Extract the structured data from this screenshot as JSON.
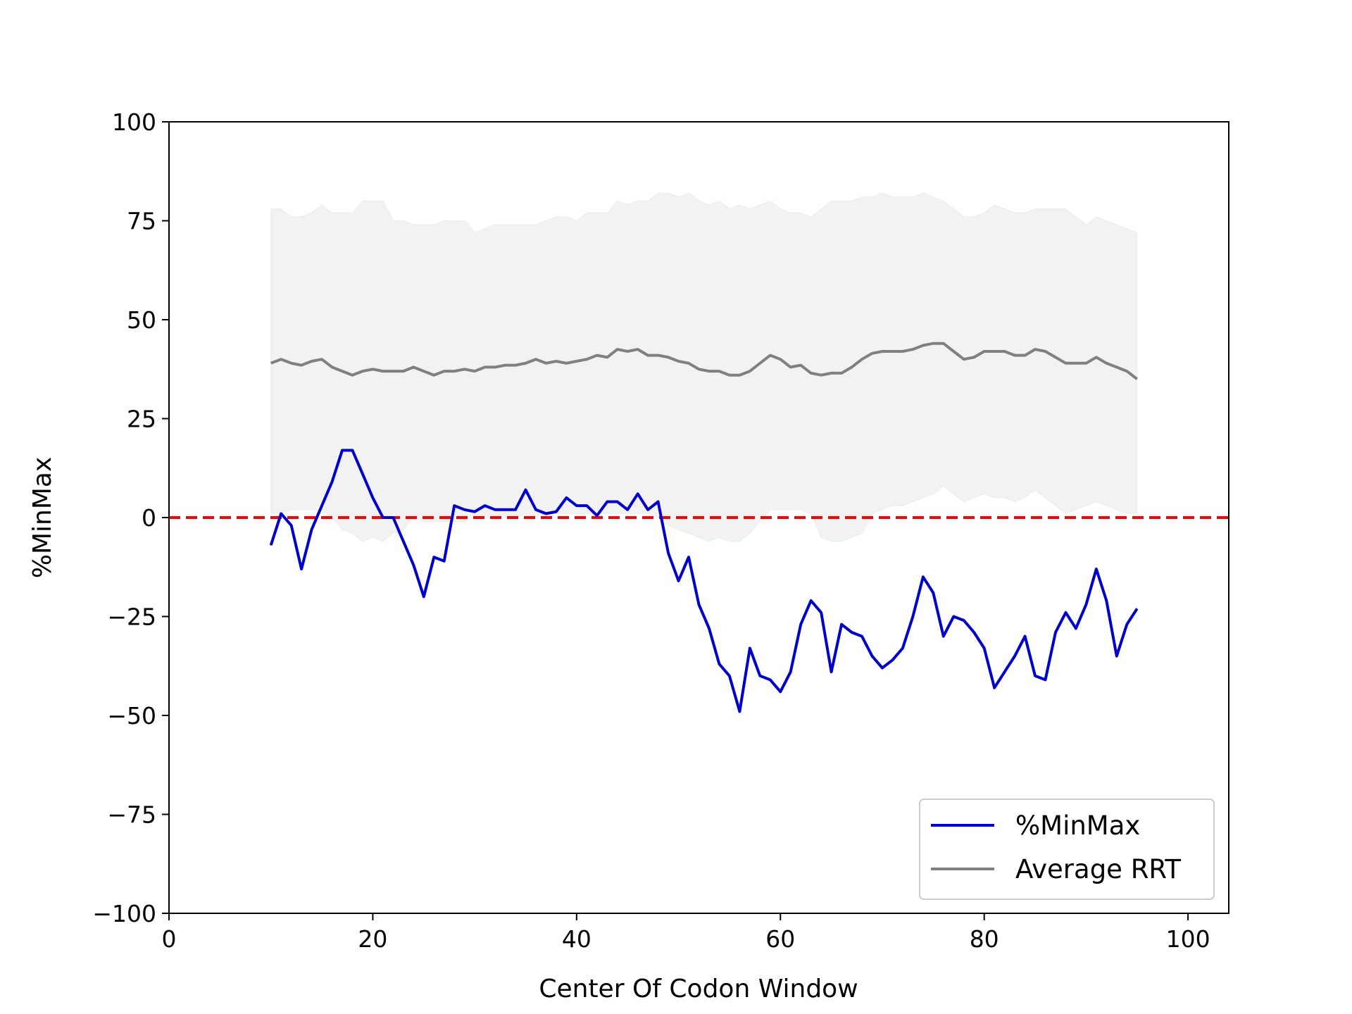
{
  "chart_data": {
    "type": "line",
    "xlabel": "Center Of Codon Window",
    "ylabel": "%MinMax",
    "xlim": [
      0,
      104
    ],
    "ylim": [
      -100,
      100
    ],
    "xticks": [
      0,
      20,
      40,
      60,
      80,
      100
    ],
    "yticks": [
      100,
      75,
      50,
      25,
      0,
      -25,
      -50,
      -75,
      -100
    ],
    "ytick_labels": [
      "100",
      "75",
      "50",
      "25",
      "0",
      "−25",
      "−50",
      "−75",
      "−100"
    ],
    "legend_position": "lower-right",
    "grid": false,
    "reference_line": {
      "y": 0,
      "style": "dashed",
      "color": "#ff0000"
    },
    "series": [
      {
        "name": "%MinMax",
        "color": "#0000cc",
        "x": [
          10,
          11,
          12,
          13,
          14,
          15,
          16,
          17,
          18,
          19,
          20,
          21,
          22,
          23,
          24,
          25,
          26,
          27,
          28,
          29,
          30,
          31,
          32,
          33,
          34,
          35,
          36,
          37,
          38,
          39,
          40,
          41,
          42,
          43,
          44,
          45,
          46,
          47,
          48,
          49,
          50,
          51,
          52,
          53,
          54,
          55,
          56,
          57,
          58,
          59,
          60,
          61,
          62,
          63,
          64,
          65,
          66,
          67,
          68,
          69,
          70,
          71,
          72,
          73,
          74,
          75,
          76,
          77,
          78,
          79,
          80,
          81,
          82,
          83,
          84,
          85,
          86,
          87,
          88,
          89,
          90,
          91,
          92,
          93,
          94,
          95
        ],
        "values": [
          -7,
          1,
          -2,
          -13,
          -3,
          3,
          9,
          17,
          17,
          11,
          5,
          0,
          0,
          -6,
          -12,
          -20,
          -10,
          -11,
          3,
          2,
          1.5,
          3,
          2,
          2,
          2,
          7,
          2,
          1,
          1.5,
          5,
          3,
          3,
          0.5,
          4,
          4,
          2,
          6,
          2,
          4,
          -9,
          -16,
          -10,
          -22,
          -28,
          -37,
          -40,
          -49,
          -33,
          -40,
          -41,
          -44,
          -39,
          -27,
          -21,
          -24,
          -39,
          -27,
          -29,
          -30,
          -35,
          -38,
          -36,
          -33,
          -25,
          -15,
          -19,
          -30,
          -25,
          -26,
          -29,
          -33,
          -43,
          -39,
          -35,
          -30,
          -40,
          -41,
          -29,
          -24,
          -28,
          -22,
          -13,
          -21,
          -35,
          -27,
          -23
        ]
      },
      {
        "name": "Average RRT",
        "color": "#808080",
        "x": [
          10,
          11,
          12,
          13,
          14,
          15,
          16,
          17,
          18,
          19,
          20,
          21,
          22,
          23,
          24,
          25,
          26,
          27,
          28,
          29,
          30,
          31,
          32,
          33,
          34,
          35,
          36,
          37,
          38,
          39,
          40,
          41,
          42,
          43,
          44,
          45,
          46,
          47,
          48,
          49,
          50,
          51,
          52,
          53,
          54,
          55,
          56,
          57,
          58,
          59,
          60,
          61,
          62,
          63,
          64,
          65,
          66,
          67,
          68,
          69,
          70,
          71,
          72,
          73,
          74,
          75,
          76,
          77,
          78,
          79,
          80,
          81,
          82,
          83,
          84,
          85,
          86,
          87,
          88,
          89,
          90,
          91,
          92,
          93,
          94,
          95
        ],
        "values": [
          39,
          40,
          39,
          38.5,
          39.5,
          40,
          38,
          37,
          36,
          37,
          37.5,
          37,
          37,
          37,
          38,
          37,
          36,
          37,
          37,
          37.5,
          37,
          38,
          38,
          38.5,
          38.5,
          39,
          40,
          39,
          39.5,
          39,
          39.5,
          40,
          41,
          40.5,
          42.5,
          42,
          42.5,
          41,
          41,
          40.5,
          39.5,
          39,
          37.5,
          37,
          37,
          36,
          36,
          37,
          39,
          41,
          40,
          38,
          38.5,
          36.5,
          36,
          36.5,
          36.5,
          38,
          40,
          41.5,
          42,
          42,
          42,
          42.5,
          43.5,
          44,
          44,
          42,
          40,
          40.5,
          42,
          42,
          42,
          41,
          41,
          42.5,
          42,
          40.5,
          39,
          39,
          39,
          40.5,
          39,
          38,
          37,
          35
        ]
      }
    ],
    "band": {
      "color": "#f2f2f2",
      "x": [
        10,
        11,
        12,
        13,
        14,
        15,
        16,
        17,
        18,
        19,
        20,
        21,
        22,
        23,
        24,
        25,
        26,
        27,
        28,
        29,
        30,
        31,
        32,
        33,
        34,
        35,
        36,
        37,
        38,
        39,
        40,
        41,
        42,
        43,
        44,
        45,
        46,
        47,
        48,
        49,
        50,
        51,
        52,
        53,
        54,
        55,
        56,
        57,
        58,
        59,
        60,
        61,
        62,
        63,
        64,
        65,
        66,
        67,
        68,
        69,
        70,
        71,
        72,
        73,
        74,
        75,
        76,
        77,
        78,
        79,
        80,
        81,
        82,
        83,
        84,
        85,
        86,
        87,
        88,
        89,
        90,
        91,
        92,
        93,
        94,
        95
      ],
      "upper": [
        78,
        78,
        76,
        76,
        77,
        79,
        77,
        77,
        77,
        80,
        80,
        80,
        75,
        75,
        74,
        74,
        74,
        75,
        75,
        75,
        72,
        73,
        74,
        74,
        74,
        74,
        74,
        75,
        76,
        76,
        75,
        77,
        77,
        77,
        80,
        79,
        80,
        80,
        82,
        82,
        81,
        82,
        80,
        79,
        80,
        78,
        79,
        78,
        79,
        80,
        78,
        77,
        77,
        76,
        78,
        80,
        80,
        80,
        81,
        81,
        82,
        81,
        81,
        81,
        82,
        81,
        80,
        78,
        76,
        76,
        77,
        79,
        78,
        77,
        77,
        78,
        78,
        78,
        78,
        76,
        74,
        76,
        75,
        74,
        73,
        72
      ],
      "lower": [
        1,
        1,
        2,
        2,
        2,
        2,
        0,
        -3,
        -4,
        -6,
        -5,
        -6,
        -4,
        -3,
        0,
        -1,
        -1,
        -1,
        -1,
        -1,
        0,
        0,
        0,
        0,
        0,
        1,
        0,
        1,
        1,
        1,
        1,
        1,
        1,
        1,
        1,
        1,
        1,
        1,
        0,
        -2,
        -3,
        -4,
        -5,
        -6,
        -5,
        -6,
        -6,
        -4,
        -1,
        2,
        2,
        2,
        2,
        1,
        -5,
        -6,
        -6,
        -5,
        -4,
        1,
        2,
        3,
        3,
        4,
        5,
        6,
        8,
        6,
        4,
        5,
        6,
        5,
        5,
        4,
        5,
        7,
        5,
        3,
        1,
        2,
        3,
        4,
        3,
        2,
        1,
        1
      ]
    }
  }
}
